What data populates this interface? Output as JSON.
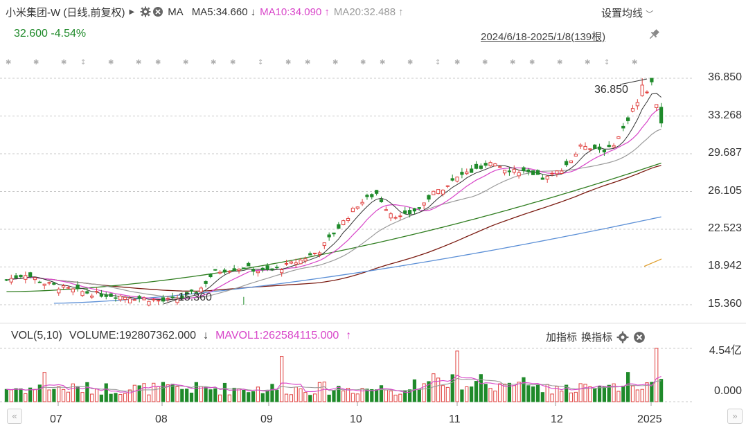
{
  "header": {
    "ticker": "小米集团-W (日线,前复权)",
    "ma_label": "MA",
    "ma5": "MA5:34.660",
    "ma10": "MA10:34.090",
    "ma20": "MA20:32.488",
    "settings_label": "设置均线",
    "price": "32.600",
    "change": "-4.54%",
    "date_range": "2024/6/18-2025/1/8(139根)"
  },
  "price_axis": [
    "36.850",
    "33.268",
    "29.687",
    "26.105",
    "22.523",
    "18.942",
    "15.360"
  ],
  "annotations": {
    "high": "36.850",
    "low": "15.360"
  },
  "volume_panel": {
    "vol_label": "VOL(5,10)",
    "volume": "VOLUME:192807362.000",
    "mavol": "MAVOL1:262584115.000",
    "add_indicator": "加指标",
    "switch_indicator": "换指标",
    "axis_top": "4.54亿",
    "axis_bottom": "0.000"
  },
  "x_axis": [
    "07",
    "08",
    "09",
    "10",
    "11",
    "12",
    "2025"
  ],
  "colors": {
    "up": "#e0413f",
    "down": "#1f8a2a",
    "ma5": "#333333",
    "ma10": "#d845c9",
    "ma20": "#9a9a9a",
    "ma60": "#7a1a10",
    "ma120": "#2f7d1f",
    "ma250": "#5b8fd6",
    "ma_extra": "#e0a030"
  },
  "chart_data": {
    "type": "candlestick",
    "y_range": [
      15.36,
      36.85
    ],
    "high": 36.85,
    "low": 15.36,
    "last_close": 32.6,
    "bars": 139,
    "months": [
      "07",
      "08",
      "09",
      "10",
      "11",
      "12",
      "2025"
    ],
    "series": [
      {
        "name": "MA5",
        "last": 34.66
      },
      {
        "name": "MA10",
        "last": 34.09
      },
      {
        "name": "MA20",
        "last": 32.488
      }
    ],
    "volume_last": 192807362.0,
    "mavol1_last": 262584115.0,
    "volume_max_label": "4.54亿"
  }
}
